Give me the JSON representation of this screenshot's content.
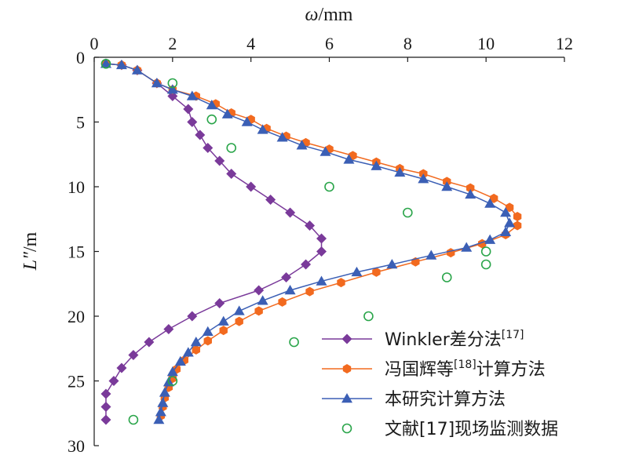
{
  "chart_data": {
    "type": "scatter",
    "x_axis": {
      "label_italic": "ω",
      "label_rest": "/mm",
      "min": 0,
      "max": 12,
      "ticks": [
        "0",
        "2",
        "4",
        "6",
        "8",
        "10",
        "12"
      ],
      "position": "top"
    },
    "y_axis": {
      "label_italic": "L″",
      "label_rest": "/m",
      "min": 0,
      "max": 30,
      "reversed": true,
      "ticks": [
        "0",
        "5",
        "10",
        "15",
        "20",
        "25",
        "30"
      ]
    },
    "grid": false,
    "legend_position": "bottom-right",
    "series": [
      {
        "name": "Winkler差分法",
        "ref": "[17]",
        "color": "#7a3a9a",
        "marker": "diamond",
        "line": true,
        "points": [
          [
            0.3,
            0.5
          ],
          [
            0.7,
            0.6
          ],
          [
            1.1,
            1
          ],
          [
            1.6,
            2
          ],
          [
            2.0,
            3
          ],
          [
            2.4,
            4
          ],
          [
            2.5,
            5
          ],
          [
            2.7,
            6
          ],
          [
            2.9,
            7
          ],
          [
            3.2,
            8
          ],
          [
            3.5,
            9
          ],
          [
            4.0,
            10
          ],
          [
            4.5,
            11
          ],
          [
            5.0,
            12
          ],
          [
            5.5,
            13
          ],
          [
            5.8,
            14
          ],
          [
            5.8,
            15
          ],
          [
            5.4,
            16
          ],
          [
            4.9,
            17
          ],
          [
            4.2,
            18
          ],
          [
            3.2,
            19
          ],
          [
            2.5,
            20
          ],
          [
            1.9,
            21
          ],
          [
            1.4,
            22
          ],
          [
            1.0,
            23
          ],
          [
            0.7,
            24
          ],
          [
            0.5,
            25
          ],
          [
            0.3,
            26
          ],
          [
            0.3,
            27
          ],
          [
            0.3,
            28
          ]
        ]
      },
      {
        "name": "冯国辉等",
        "ref": "[18]",
        "name_suffix": "计算方法",
        "color": "#f26a1f",
        "marker": "hexagon",
        "line": true,
        "points": [
          [
            0.3,
            0.5
          ],
          [
            0.7,
            0.6
          ],
          [
            1.1,
            1
          ],
          [
            1.6,
            2
          ],
          [
            2.0,
            2.5
          ],
          [
            2.6,
            3
          ],
          [
            3.1,
            3.6
          ],
          [
            3.5,
            4.3
          ],
          [
            4.0,
            4.8
          ],
          [
            4.4,
            5.5
          ],
          [
            4.9,
            6.1
          ],
          [
            5.4,
            6.6
          ],
          [
            6.0,
            7.1
          ],
          [
            6.6,
            7.6
          ],
          [
            7.2,
            8.1
          ],
          [
            7.8,
            8.6
          ],
          [
            8.4,
            9.0
          ],
          [
            9.0,
            9.6
          ],
          [
            9.6,
            10.1
          ],
          [
            10.2,
            10.9
          ],
          [
            10.6,
            11.6
          ],
          [
            10.8,
            12.3
          ],
          [
            10.8,
            13.0
          ],
          [
            10.5,
            13.7
          ],
          [
            9.9,
            14.4
          ],
          [
            9.1,
            15.1
          ],
          [
            8.2,
            15.8
          ],
          [
            7.2,
            16.6
          ],
          [
            6.3,
            17.4
          ],
          [
            5.5,
            18.1
          ],
          [
            4.8,
            18.9
          ],
          [
            4.2,
            19.6
          ],
          [
            3.7,
            20.4
          ],
          [
            3.3,
            21.1
          ],
          [
            2.9,
            21.9
          ],
          [
            2.6,
            22.6
          ],
          [
            2.3,
            23.4
          ],
          [
            2.1,
            24.1
          ],
          [
            2.0,
            24.8
          ],
          [
            1.9,
            25.5
          ],
          [
            1.8,
            26.3
          ],
          [
            1.75,
            27.0
          ],
          [
            1.7,
            27.7
          ]
        ]
      },
      {
        "name": "本研究计算方法",
        "ref": "",
        "color": "#3b5fb5",
        "marker": "triangle",
        "line": true,
        "points": [
          [
            0.3,
            0.5
          ],
          [
            0.7,
            0.6
          ],
          [
            1.1,
            1
          ],
          [
            1.6,
            2
          ],
          [
            2.0,
            2.5
          ],
          [
            2.5,
            3
          ],
          [
            3.0,
            3.7
          ],
          [
            3.4,
            4.4
          ],
          [
            3.9,
            5.0
          ],
          [
            4.3,
            5.6
          ],
          [
            4.8,
            6.2
          ],
          [
            5.3,
            6.8
          ],
          [
            5.9,
            7.3
          ],
          [
            6.5,
            7.9
          ],
          [
            7.2,
            8.4
          ],
          [
            7.8,
            8.9
          ],
          [
            8.4,
            9.4
          ],
          [
            9.0,
            10.0
          ],
          [
            9.6,
            10.6
          ],
          [
            10.1,
            11.3
          ],
          [
            10.5,
            12.0
          ],
          [
            10.6,
            12.8
          ],
          [
            10.5,
            13.5
          ],
          [
            10.1,
            14.1
          ],
          [
            9.5,
            14.7
          ],
          [
            8.6,
            15.3
          ],
          [
            7.6,
            16.0
          ],
          [
            6.7,
            16.6
          ],
          [
            5.8,
            17.3
          ],
          [
            5.0,
            18.0
          ],
          [
            4.3,
            18.8
          ],
          [
            3.7,
            19.6
          ],
          [
            3.3,
            20.4
          ],
          [
            2.9,
            21.2
          ],
          [
            2.6,
            22.0
          ],
          [
            2.4,
            22.8
          ],
          [
            2.2,
            23.5
          ],
          [
            2.0,
            24.3
          ],
          [
            1.9,
            25.1
          ],
          [
            1.8,
            25.9
          ],
          [
            1.75,
            26.7
          ],
          [
            1.7,
            27.4
          ],
          [
            1.65,
            28.0
          ]
        ]
      },
      {
        "name": "文献",
        "ref": "",
        "name_suffix": "[17]现场监测数据",
        "color": "#2aa54a",
        "marker": "circle-open",
        "line": false,
        "points": [
          [
            0.3,
            0.5
          ],
          [
            2.0,
            2.0
          ],
          [
            3.0,
            4.8
          ],
          [
            3.5,
            7.0
          ],
          [
            6.0,
            10.0
          ],
          [
            8.0,
            12.0
          ],
          [
            10.0,
            15.0
          ],
          [
            10.0,
            16.0
          ],
          [
            9.0,
            17.0
          ],
          [
            7.0,
            20.0
          ],
          [
            5.1,
            22.0
          ],
          [
            2.0,
            25.0
          ],
          [
            1.0,
            28.0
          ]
        ]
      }
    ]
  }
}
